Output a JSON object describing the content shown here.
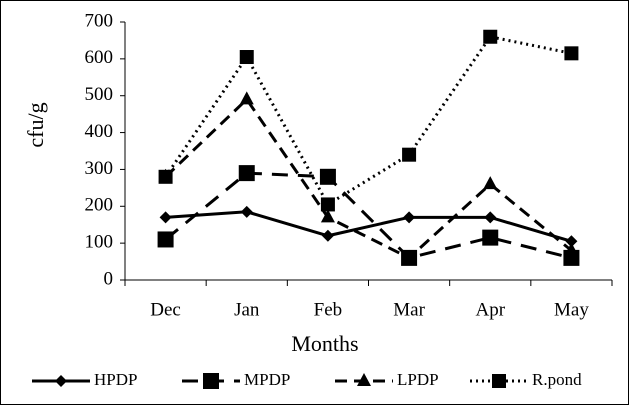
{
  "chart_data": {
    "type": "line",
    "x_label": "Months",
    "y_label": "cfu/g",
    "categories": [
      "Dec",
      "Jan",
      "Feb",
      "Mar",
      "Apr",
      "May"
    ],
    "ylim": [
      0,
      700
    ],
    "yticks": [
      0,
      100,
      200,
      300,
      400,
      500,
      600,
      700
    ],
    "legend": "bottom",
    "series": [
      {
        "name": "HPDP",
        "color": "#000000",
        "dash": "solid",
        "marker": "diamond",
        "values": [
          170,
          185,
          120,
          170,
          170,
          105
        ]
      },
      {
        "name": "MPDP",
        "color": "#000000",
        "dash": "longdash",
        "marker": "square",
        "values": [
          110,
          290,
          280,
          60,
          115,
          60
        ]
      },
      {
        "name": "LPDP",
        "color": "#000000",
        "dash": "dash",
        "marker": "triangle",
        "values": [
          280,
          490,
          170,
          60,
          260,
          80
        ]
      },
      {
        "name": "R.pond",
        "color": "#000000",
        "dash": "dot",
        "marker": "smallsquare",
        "values": [
          280,
          605,
          205,
          340,
          660,
          615
        ]
      }
    ]
  }
}
